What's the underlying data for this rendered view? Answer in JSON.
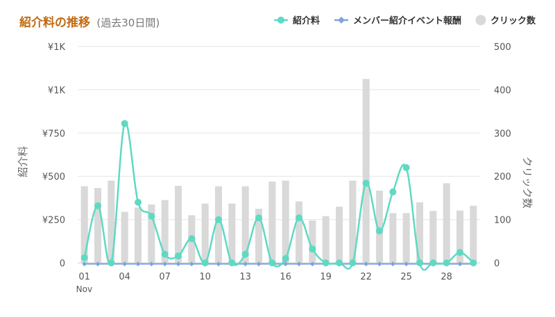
{
  "header": {
    "title": "紹介料の推移",
    "subtitle": "(過去30日間)"
  },
  "legend": [
    {
      "label": "紹介料",
      "color": "#5fd9c3",
      "icon": "line-dot-icon"
    },
    {
      "label": "メンバー紹介イベント報酬",
      "color": "#7fa4dd",
      "icon": "line-diamond-icon"
    },
    {
      "label": "クリック数",
      "color": "#d9d9d9",
      "icon": "circle-icon"
    }
  ],
  "chart_data": {
    "type": "bar+line",
    "x": [
      "01",
      "02",
      "03",
      "04",
      "05",
      "06",
      "07",
      "08",
      "09",
      "10",
      "11",
      "12",
      "13",
      "14",
      "15",
      "16",
      "17",
      "18",
      "19",
      "20",
      "21",
      "22",
      "23",
      "24",
      "25",
      "26",
      "27",
      "28",
      "29",
      "30"
    ],
    "x_tick_labels": [
      "01",
      "04",
      "07",
      "10",
      "13",
      "16",
      "19",
      "22",
      "25",
      "28"
    ],
    "x_month_label": "Nov",
    "y_left": {
      "label": "紹介料",
      "range": [
        0,
        1250
      ],
      "tick_labels": [
        "0",
        "¥250",
        "¥500",
        "¥750",
        "¥1K",
        "¥1K"
      ]
    },
    "y_right": {
      "label": "クリック数",
      "range": [
        0,
        500
      ],
      "tick_labels": [
        "0",
        "100",
        "200",
        "300",
        "400",
        "500"
      ]
    },
    "series": [
      {
        "name": "クリック数",
        "type": "bar",
        "axis": "right",
        "color": "#d9d9d9",
        "values": [
          177,
          173,
          190,
          118,
          128,
          135,
          145,
          178,
          110,
          137,
          177,
          137,
          177,
          125,
          188,
          190,
          142,
          98,
          108,
          130,
          190,
          425,
          167,
          115,
          115,
          140,
          120,
          184,
          121,
          132
        ]
      },
      {
        "name": "紹介料",
        "type": "line",
        "axis": "left",
        "color": "#5fd9c3",
        "values": [
          30,
          330,
          0,
          805,
          350,
          270,
          50,
          40,
          140,
          0,
          250,
          0,
          50,
          260,
          0,
          25,
          260,
          80,
          0,
          0,
          0,
          460,
          185,
          410,
          550,
          0,
          0,
          0,
          60,
          0
        ]
      },
      {
        "name": "メンバー紹介イベント報酬",
        "type": "line",
        "axis": "left",
        "color": "#7fa4dd",
        "values": [
          10,
          10,
          10,
          10,
          10,
          10,
          10,
          10,
          10,
          10,
          10,
          10,
          10,
          10,
          10,
          10,
          10,
          10,
          10,
          10,
          10,
          10,
          10,
          10,
          10,
          10,
          10,
          10,
          10,
          10
        ]
      }
    ],
    "grid": true
  }
}
